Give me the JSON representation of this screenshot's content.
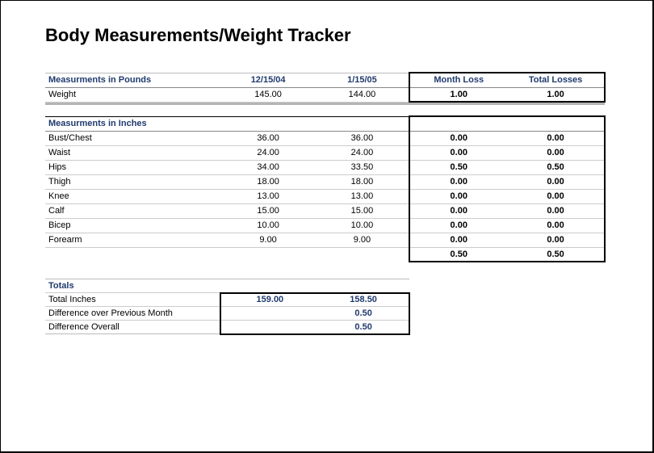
{
  "title": "Body Measurements/Weight Tracker",
  "headers": {
    "pounds_section": "Measurments in Pounds",
    "inches_section": "Measurments in Inches",
    "date1": "12/15/04",
    "date2": "1/15/05",
    "month_loss": "Month Loss",
    "total_losses": "Total Losses"
  },
  "weight_row": {
    "label": "Weight",
    "v1": "145.00",
    "v2": "144.00",
    "month_loss": "1.00",
    "total_loss": "1.00"
  },
  "inches_rows": [
    {
      "label": "Bust/Chest",
      "v1": "36.00",
      "v2": "36.00",
      "month_loss": "0.00",
      "total_loss": "0.00"
    },
    {
      "label": "Waist",
      "v1": "24.00",
      "v2": "24.00",
      "month_loss": "0.00",
      "total_loss": "0.00"
    },
    {
      "label": "Hips",
      "v1": "34.00",
      "v2": "33.50",
      "month_loss": "0.50",
      "total_loss": "0.50"
    },
    {
      "label": "Thigh",
      "v1": "18.00",
      "v2": "18.00",
      "month_loss": "0.00",
      "total_loss": "0.00"
    },
    {
      "label": "Knee",
      "v1": "13.00",
      "v2": "13.00",
      "month_loss": "0.00",
      "total_loss": "0.00"
    },
    {
      "label": "Calf",
      "v1": "15.00",
      "v2": "15.00",
      "month_loss": "0.00",
      "total_loss": "0.00"
    },
    {
      "label": "Bicep",
      "v1": "10.00",
      "v2": "10.00",
      "month_loss": "0.00",
      "total_loss": "0.00"
    },
    {
      "label": "Forearm",
      "v1": "9.00",
      "v2": "9.00",
      "month_loss": "0.00",
      "total_loss": "0.00"
    }
  ],
  "inches_sum": {
    "month_loss": "0.50",
    "total_loss": "0.50"
  },
  "totals": {
    "header": "Totals",
    "rows": [
      {
        "label": "Total Inches",
        "v1": "159.00",
        "v2": "158.50"
      },
      {
        "label": "Difference over Previous Month",
        "v1": "",
        "v2": "0.50"
      },
      {
        "label": "Difference Overall",
        "v1": "",
        "v2": "0.50"
      }
    ]
  },
  "style": {
    "title_fontsize": 22,
    "body_fontsize": 11,
    "header_color": "#1f3a6e",
    "text_color": "#000000",
    "gridline_color": "#cccccc",
    "heavy_border_color": "#000000",
    "divider_color": "#b5b5b5",
    "background_color": "#ffffff"
  }
}
